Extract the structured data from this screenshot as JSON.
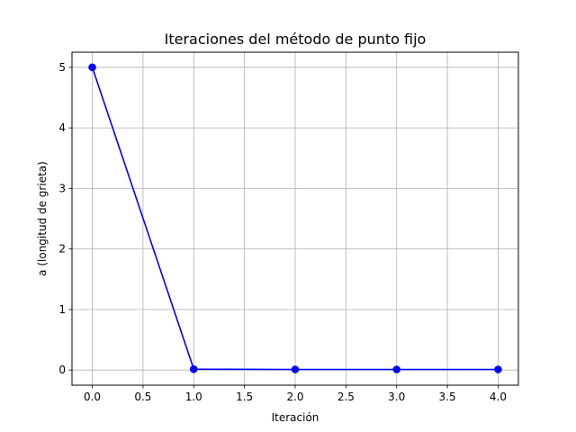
{
  "chart_data": {
    "type": "line",
    "title": "Iteraciones del método de punto fijo",
    "xlabel": "Iteración",
    "ylabel": "a (longitud de grieta)",
    "x": [
      0,
      1,
      2,
      3,
      4
    ],
    "series": [
      {
        "values": [
          5.0,
          0.015,
          0.01,
          0.01,
          0.01
        ],
        "color": "#0000ff",
        "marker": "circle"
      }
    ],
    "xlim": [
      -0.2,
      4.2
    ],
    "ylim": [
      -0.25,
      5.25
    ],
    "xticks": [
      0.0,
      0.5,
      1.0,
      1.5,
      2.0,
      2.5,
      3.0,
      3.5,
      4.0
    ],
    "xtick_labels": [
      "0.0",
      "0.5",
      "1.0",
      "1.5",
      "2.0",
      "2.5",
      "3.0",
      "3.5",
      "4.0"
    ],
    "yticks": [
      0,
      1,
      2,
      3,
      4,
      5
    ],
    "ytick_labels": [
      "0",
      "1",
      "2",
      "3",
      "4",
      "5"
    ],
    "grid": true,
    "grid_color": "#b0b0b0"
  }
}
